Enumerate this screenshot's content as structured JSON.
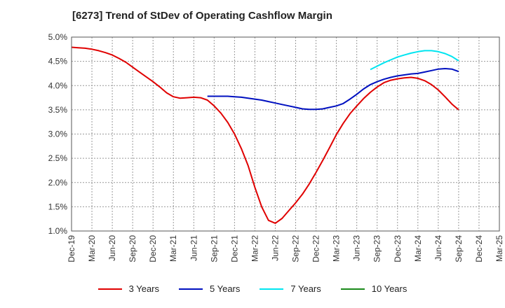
{
  "chart_data": {
    "type": "line",
    "title": "[6273]  Trend of StDev of Operating Cashflow Margin",
    "xlabel": "",
    "ylabel": "",
    "x_ticks": [
      "Dec-19",
      "Mar-20",
      "Jun-20",
      "Sep-20",
      "Dec-20",
      "Mar-21",
      "Jun-21",
      "Sep-21",
      "Dec-21",
      "Mar-22",
      "Jun-22",
      "Sep-22",
      "Dec-22",
      "Mar-23",
      "Jun-23",
      "Sep-23",
      "Dec-23",
      "Mar-24",
      "Jun-24",
      "Sep-24",
      "Dec-24",
      "Mar-25"
    ],
    "y_ticks": [
      "1.0%",
      "1.5%",
      "2.0%",
      "2.5%",
      "3.0%",
      "3.5%",
      "4.0%",
      "4.5%",
      "5.0%"
    ],
    "ylim": [
      1.0,
      5.0
    ],
    "grid": true,
    "legend_position": "bottom",
    "series": [
      {
        "name": "3 Years",
        "color": "#e00000",
        "points": [
          [
            "Dec-19",
            4.79
          ],
          [
            "Jan-20",
            4.78
          ],
          [
            "Feb-20",
            4.77
          ],
          [
            "Mar-20",
            4.75
          ],
          [
            "Apr-20",
            4.72
          ],
          [
            "May-20",
            4.68
          ],
          [
            "Jun-20",
            4.63
          ],
          [
            "Jul-20",
            4.56
          ],
          [
            "Aug-20",
            4.48
          ],
          [
            "Sep-20",
            4.38
          ],
          [
            "Oct-20",
            4.28
          ],
          [
            "Nov-20",
            4.18
          ],
          [
            "Dec-20",
            4.08
          ],
          [
            "Jan-21",
            3.97
          ],
          [
            "Feb-21",
            3.85
          ],
          [
            "Mar-21",
            3.77
          ],
          [
            "Apr-21",
            3.74
          ],
          [
            "May-21",
            3.75
          ],
          [
            "Jun-21",
            3.76
          ],
          [
            "Jul-21",
            3.75
          ],
          [
            "Aug-21",
            3.7
          ],
          [
            "Sep-21",
            3.58
          ],
          [
            "Oct-21",
            3.43
          ],
          [
            "Nov-21",
            3.24
          ],
          [
            "Dec-21",
            3.0
          ],
          [
            "Jan-22",
            2.7
          ],
          [
            "Feb-22",
            2.35
          ],
          [
            "Mar-22",
            1.9
          ],
          [
            "Apr-22",
            1.5
          ],
          [
            "May-22",
            1.22
          ],
          [
            "Jun-22",
            1.16
          ],
          [
            "Jul-22",
            1.26
          ],
          [
            "Aug-22",
            1.42
          ],
          [
            "Sep-22",
            1.58
          ],
          [
            "Oct-22",
            1.76
          ],
          [
            "Nov-22",
            1.97
          ],
          [
            "Dec-22",
            2.21
          ],
          [
            "Jan-23",
            2.46
          ],
          [
            "Feb-23",
            2.72
          ],
          [
            "Mar-23",
            2.99
          ],
          [
            "Apr-23",
            3.22
          ],
          [
            "May-23",
            3.42
          ],
          [
            "Jun-23",
            3.58
          ],
          [
            "Jul-23",
            3.73
          ],
          [
            "Aug-23",
            3.86
          ],
          [
            "Sep-23",
            3.97
          ],
          [
            "Oct-23",
            4.06
          ],
          [
            "Nov-23",
            4.11
          ],
          [
            "Dec-23",
            4.14
          ],
          [
            "Jan-24",
            4.16
          ],
          [
            "Feb-24",
            4.17
          ],
          [
            "Mar-24",
            4.15
          ],
          [
            "Apr-24",
            4.1
          ],
          [
            "May-24",
            4.02
          ],
          [
            "Jun-24",
            3.91
          ],
          [
            "Jul-24",
            3.77
          ],
          [
            "Aug-24",
            3.62
          ],
          [
            "Sep-24",
            3.5
          ]
        ]
      },
      {
        "name": "5 Years",
        "color": "#0010c0",
        "points": [
          [
            "Aug-21",
            3.78
          ],
          [
            "Sep-21",
            3.78
          ],
          [
            "Oct-21",
            3.78
          ],
          [
            "Nov-21",
            3.78
          ],
          [
            "Dec-21",
            3.77
          ],
          [
            "Jan-22",
            3.76
          ],
          [
            "Feb-22",
            3.74
          ],
          [
            "Mar-22",
            3.72
          ],
          [
            "Apr-22",
            3.7
          ],
          [
            "May-22",
            3.67
          ],
          [
            "Jun-22",
            3.64
          ],
          [
            "Jul-22",
            3.61
          ],
          [
            "Aug-22",
            3.58
          ],
          [
            "Sep-22",
            3.55
          ],
          [
            "Oct-22",
            3.52
          ],
          [
            "Nov-22",
            3.51
          ],
          [
            "Dec-22",
            3.51
          ],
          [
            "Jan-23",
            3.52
          ],
          [
            "Feb-23",
            3.55
          ],
          [
            "Mar-23",
            3.58
          ],
          [
            "Apr-23",
            3.63
          ],
          [
            "May-23",
            3.72
          ],
          [
            "Jun-23",
            3.82
          ],
          [
            "Jul-23",
            3.93
          ],
          [
            "Aug-23",
            4.02
          ],
          [
            "Sep-23",
            4.08
          ],
          [
            "Oct-23",
            4.13
          ],
          [
            "Nov-23",
            4.17
          ],
          [
            "Dec-23",
            4.2
          ],
          [
            "Jan-24",
            4.22
          ],
          [
            "Feb-24",
            4.24
          ],
          [
            "Mar-24",
            4.25
          ],
          [
            "Apr-24",
            4.28
          ],
          [
            "May-24",
            4.31
          ],
          [
            "Jun-24",
            4.34
          ],
          [
            "Jul-24",
            4.35
          ],
          [
            "Aug-24",
            4.34
          ],
          [
            "Sep-24",
            4.29
          ]
        ]
      },
      {
        "name": "7 Years",
        "color": "#00e5f0",
        "points": [
          [
            "Aug-23",
            4.33
          ],
          [
            "Sep-23",
            4.4
          ],
          [
            "Oct-23",
            4.47
          ],
          [
            "Nov-23",
            4.53
          ],
          [
            "Dec-23",
            4.59
          ],
          [
            "Jan-24",
            4.63
          ],
          [
            "Feb-24",
            4.67
          ],
          [
            "Mar-24",
            4.7
          ],
          [
            "Apr-24",
            4.72
          ],
          [
            "May-24",
            4.72
          ],
          [
            "Jun-24",
            4.7
          ],
          [
            "Jul-24",
            4.66
          ],
          [
            "Aug-24",
            4.6
          ],
          [
            "Sep-24",
            4.51
          ]
        ]
      },
      {
        "name": "10 Years",
        "color": "#1a8a1a",
        "points": []
      }
    ]
  }
}
